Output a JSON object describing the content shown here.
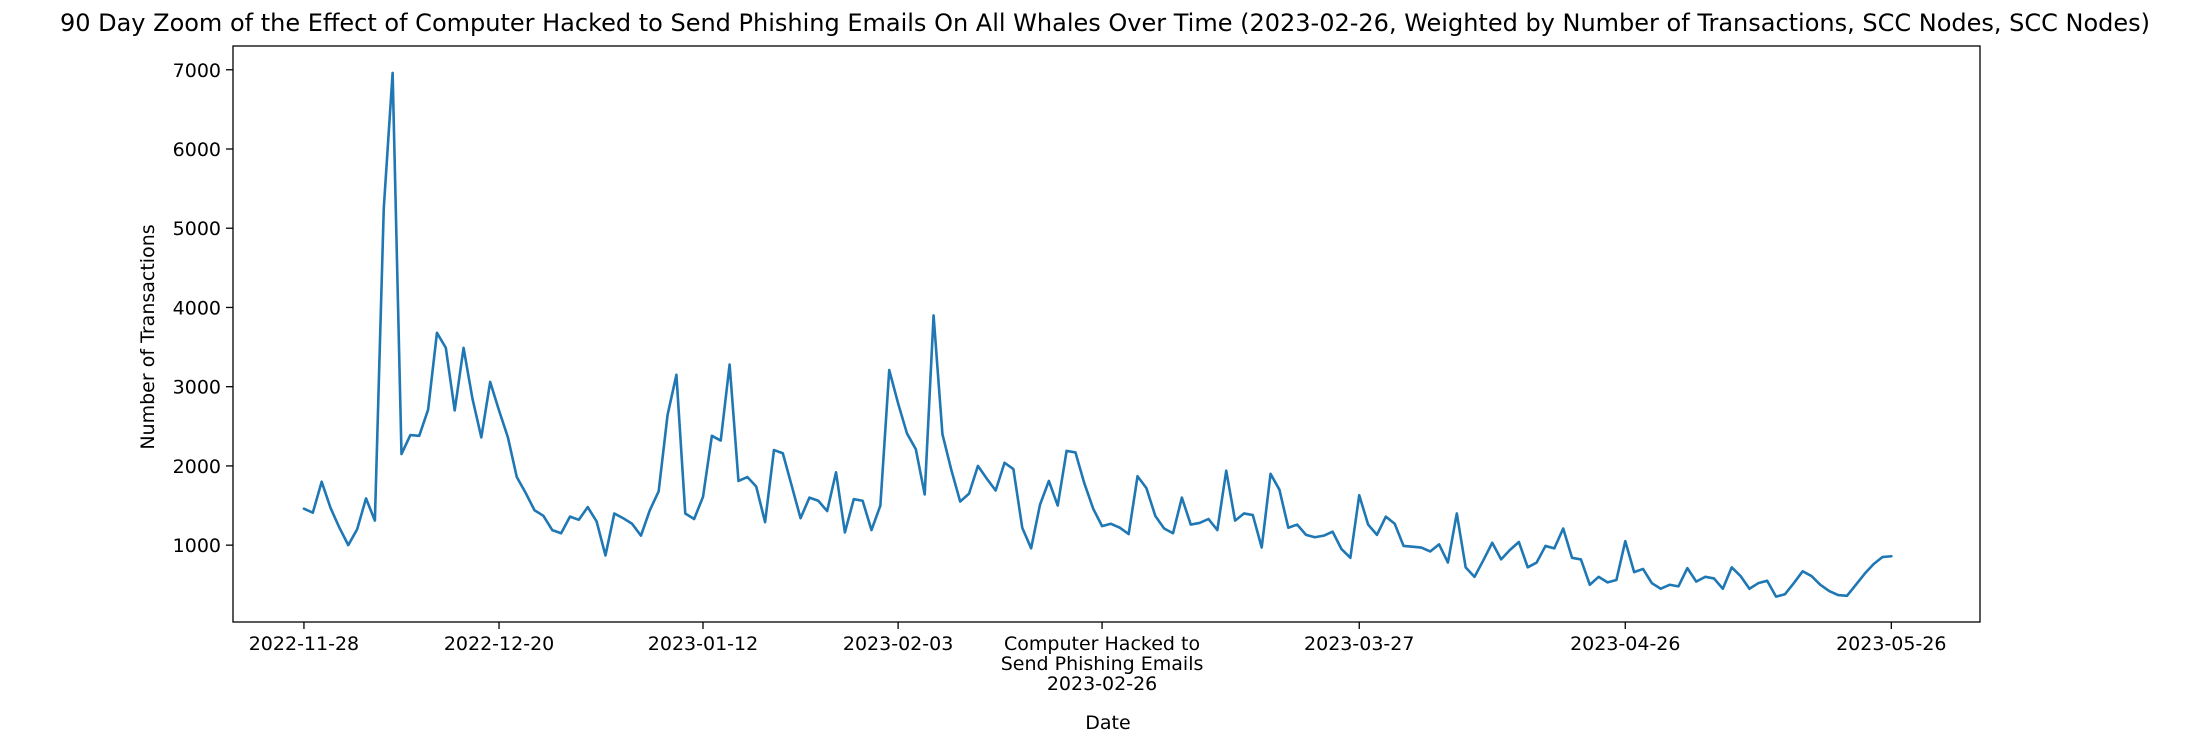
{
  "chart_data": {
    "type": "line",
    "title": "90 Day Zoom of the Effect of Computer Hacked to Send Phishing Emails On All Whales Over Time (2023-02-26, Weighted by Number of Transactions, SCC Nodes, SCC Nodes)",
    "xlabel": "Date",
    "ylabel": "Number of Transactions",
    "x_range": [
      "2022-11-20",
      "2023-06-05"
    ],
    "ylim": [
      30,
      7300
    ],
    "x_ticks": [
      "2022-11-28",
      "2022-12-20",
      "2023-01-12",
      "2023-02-03",
      "2023-02-26",
      "2023-03-27",
      "2023-04-26",
      "2023-05-26"
    ],
    "x_tick_labels": [
      "2022-11-28",
      "2022-12-20",
      "2023-01-12",
      "2023-02-03",
      "Computer Hacked to\nSend Phishing Emails\n2023-02-26",
      "2023-03-27",
      "2023-04-26",
      "2023-05-26"
    ],
    "y_ticks": [
      1000,
      2000,
      3000,
      4000,
      5000,
      6000,
      7000
    ],
    "grid": false,
    "series": [
      {
        "color": "#1f77b4",
        "points": [
          [
            "2022-11-28",
            1460
          ],
          [
            "2022-11-29",
            1410
          ],
          [
            "2022-11-30",
            1800
          ],
          [
            "2022-12-01",
            1470
          ],
          [
            "2022-12-02",
            1220
          ],
          [
            "2022-12-03",
            1000
          ],
          [
            "2022-12-04",
            1200
          ],
          [
            "2022-12-05",
            1590
          ],
          [
            "2022-12-06",
            1310
          ],
          [
            "2022-12-07",
            5250
          ],
          [
            "2022-12-08",
            6960
          ],
          [
            "2022-12-09",
            2150
          ],
          [
            "2022-12-10",
            2390
          ],
          [
            "2022-12-11",
            2380
          ],
          [
            "2022-12-12",
            2710
          ],
          [
            "2022-12-13",
            3680
          ],
          [
            "2022-12-14",
            3490
          ],
          [
            "2022-12-15",
            2700
          ],
          [
            "2022-12-16",
            3490
          ],
          [
            "2022-12-17",
            2850
          ],
          [
            "2022-12-18",
            2360
          ],
          [
            "2022-12-19",
            3060
          ],
          [
            "2022-12-20",
            2700
          ],
          [
            "2022-12-21",
            2360
          ],
          [
            "2022-12-22",
            1860
          ],
          [
            "2022-12-23",
            1660
          ],
          [
            "2022-12-24",
            1440
          ],
          [
            "2022-12-25",
            1370
          ],
          [
            "2022-12-26",
            1190
          ],
          [
            "2022-12-27",
            1150
          ],
          [
            "2022-12-28",
            1360
          ],
          [
            "2022-12-29",
            1320
          ],
          [
            "2022-12-30",
            1480
          ],
          [
            "2022-12-31",
            1300
          ],
          [
            "2023-01-01",
            870
          ],
          [
            "2023-01-02",
            1400
          ],
          [
            "2023-01-03",
            1340
          ],
          [
            "2023-01-04",
            1270
          ],
          [
            "2023-01-05",
            1120
          ],
          [
            "2023-01-06",
            1440
          ],
          [
            "2023-01-07",
            1680
          ],
          [
            "2023-01-08",
            2640
          ],
          [
            "2023-01-09",
            3150
          ],
          [
            "2023-01-10",
            1400
          ],
          [
            "2023-01-11",
            1330
          ],
          [
            "2023-01-12",
            1610
          ],
          [
            "2023-01-13",
            2380
          ],
          [
            "2023-01-14",
            2320
          ],
          [
            "2023-01-15",
            3280
          ],
          [
            "2023-01-16",
            1810
          ],
          [
            "2023-01-17",
            1860
          ],
          [
            "2023-01-18",
            1740
          ],
          [
            "2023-01-19",
            1290
          ],
          [
            "2023-01-20",
            2200
          ],
          [
            "2023-01-21",
            2160
          ],
          [
            "2023-01-22",
            1750
          ],
          [
            "2023-01-23",
            1340
          ],
          [
            "2023-01-24",
            1600
          ],
          [
            "2023-01-25",
            1560
          ],
          [
            "2023-01-26",
            1430
          ],
          [
            "2023-01-27",
            1920
          ],
          [
            "2023-01-28",
            1160
          ],
          [
            "2023-01-29",
            1580
          ],
          [
            "2023-01-30",
            1560
          ],
          [
            "2023-01-31",
            1190
          ],
          [
            "2023-02-01",
            1500
          ],
          [
            "2023-02-02",
            3210
          ],
          [
            "2023-02-03",
            2790
          ],
          [
            "2023-02-04",
            2410
          ],
          [
            "2023-02-05",
            2210
          ],
          [
            "2023-02-06",
            1640
          ],
          [
            "2023-02-07",
            3900
          ],
          [
            "2023-02-08",
            2400
          ],
          [
            "2023-02-09",
            1950
          ],
          [
            "2023-02-10",
            1550
          ],
          [
            "2023-02-11",
            1650
          ],
          [
            "2023-02-12",
            2000
          ],
          [
            "2023-02-13",
            1840
          ],
          [
            "2023-02-14",
            1690
          ],
          [
            "2023-02-15",
            2040
          ],
          [
            "2023-02-16",
            1960
          ],
          [
            "2023-02-17",
            1220
          ],
          [
            "2023-02-18",
            960
          ],
          [
            "2023-02-19",
            1510
          ],
          [
            "2023-02-20",
            1810
          ],
          [
            "2023-02-21",
            1500
          ],
          [
            "2023-02-22",
            2190
          ],
          [
            "2023-02-23",
            2170
          ],
          [
            "2023-02-24",
            1780
          ],
          [
            "2023-02-25",
            1460
          ],
          [
            "2023-02-26",
            1240
          ],
          [
            "2023-02-27",
            1270
          ],
          [
            "2023-02-28",
            1220
          ],
          [
            "2023-03-01",
            1140
          ],
          [
            "2023-03-02",
            1870
          ],
          [
            "2023-03-03",
            1720
          ],
          [
            "2023-03-04",
            1370
          ],
          [
            "2023-03-05",
            1210
          ],
          [
            "2023-03-06",
            1150
          ],
          [
            "2023-03-07",
            1600
          ],
          [
            "2023-03-08",
            1260
          ],
          [
            "2023-03-09",
            1280
          ],
          [
            "2023-03-10",
            1330
          ],
          [
            "2023-03-11",
            1190
          ],
          [
            "2023-03-12",
            1940
          ],
          [
            "2023-03-13",
            1310
          ],
          [
            "2023-03-14",
            1400
          ],
          [
            "2023-03-15",
            1380
          ],
          [
            "2023-03-16",
            970
          ],
          [
            "2023-03-17",
            1900
          ],
          [
            "2023-03-18",
            1700
          ],
          [
            "2023-03-19",
            1220
          ],
          [
            "2023-03-20",
            1260
          ],
          [
            "2023-03-21",
            1130
          ],
          [
            "2023-03-22",
            1100
          ],
          [
            "2023-03-23",
            1120
          ],
          [
            "2023-03-24",
            1170
          ],
          [
            "2023-03-25",
            950
          ],
          [
            "2023-03-26",
            840
          ],
          [
            "2023-03-27",
            1630
          ],
          [
            "2023-03-28",
            1260
          ],
          [
            "2023-03-29",
            1130
          ],
          [
            "2023-03-30",
            1360
          ],
          [
            "2023-03-31",
            1270
          ],
          [
            "2023-04-01",
            990
          ],
          [
            "2023-04-02",
            980
          ],
          [
            "2023-04-03",
            970
          ],
          [
            "2023-04-04",
            920
          ],
          [
            "2023-04-05",
            1010
          ],
          [
            "2023-04-06",
            780
          ],
          [
            "2023-04-07",
            1400
          ],
          [
            "2023-04-08",
            720
          ],
          [
            "2023-04-09",
            600
          ],
          [
            "2023-04-10",
            810
          ],
          [
            "2023-04-11",
            1030
          ],
          [
            "2023-04-12",
            820
          ],
          [
            "2023-04-13",
            940
          ],
          [
            "2023-04-14",
            1040
          ],
          [
            "2023-04-15",
            720
          ],
          [
            "2023-04-16",
            780
          ],
          [
            "2023-04-17",
            990
          ],
          [
            "2023-04-18",
            960
          ],
          [
            "2023-04-19",
            1210
          ],
          [
            "2023-04-20",
            840
          ],
          [
            "2023-04-21",
            820
          ],
          [
            "2023-04-22",
            500
          ],
          [
            "2023-04-23",
            600
          ],
          [
            "2023-04-24",
            530
          ],
          [
            "2023-04-25",
            560
          ],
          [
            "2023-04-26",
            1050
          ],
          [
            "2023-04-27",
            660
          ],
          [
            "2023-04-28",
            700
          ],
          [
            "2023-04-29",
            520
          ],
          [
            "2023-04-30",
            450
          ],
          [
            "2023-05-01",
            500
          ],
          [
            "2023-05-02",
            480
          ],
          [
            "2023-05-03",
            710
          ],
          [
            "2023-05-04",
            540
          ],
          [
            "2023-05-05",
            600
          ],
          [
            "2023-05-06",
            580
          ],
          [
            "2023-05-07",
            450
          ],
          [
            "2023-05-08",
            720
          ],
          [
            "2023-05-09",
            610
          ],
          [
            "2023-05-10",
            450
          ],
          [
            "2023-05-11",
            520
          ],
          [
            "2023-05-12",
            550
          ],
          [
            "2023-05-13",
            350
          ],
          [
            "2023-05-14",
            380
          ],
          [
            "2023-05-15",
            520
          ],
          [
            "2023-05-16",
            670
          ],
          [
            "2023-05-17",
            610
          ],
          [
            "2023-05-18",
            500
          ],
          [
            "2023-05-19",
            420
          ],
          [
            "2023-05-20",
            370
          ],
          [
            "2023-05-21",
            360
          ],
          [
            "2023-05-22",
            500
          ],
          [
            "2023-05-23",
            640
          ],
          [
            "2023-05-24",
            760
          ],
          [
            "2023-05-25",
            850
          ],
          [
            "2023-05-26",
            860
          ]
        ]
      }
    ]
  }
}
